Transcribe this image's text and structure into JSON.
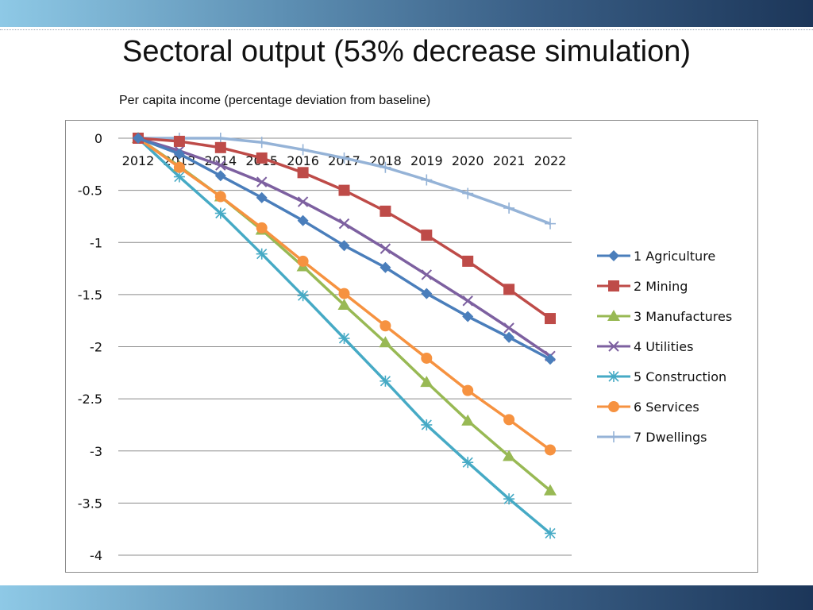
{
  "slide": {
    "title": "Sectoral output (53% decrease simulation)"
  },
  "chart_data": {
    "type": "line",
    "title": "Per capita income  (percentage deviation from baseline)",
    "xlabel": "",
    "ylabel": "",
    "categories": [
      "2012",
      "2013",
      "2014",
      "2015",
      "2016",
      "2017",
      "2018",
      "2019",
      "2020",
      "2021",
      "2022"
    ],
    "ylim": [
      -4,
      0
    ],
    "yticks": [
      0,
      -0.5,
      -1,
      -1.5,
      -2,
      -2.5,
      -3,
      -3.5,
      -4
    ],
    "ytick_labels": [
      "0",
      "-0.5",
      "-1",
      "-1.5",
      "-2",
      "-2.5",
      "-3",
      "-3.5",
      "-4"
    ],
    "grid": true,
    "legend_position": "right",
    "series": [
      {
        "name": "1 Agriculture",
        "color": "#4a7ebb",
        "marker": "diamond",
        "values": [
          0,
          -0.15,
          -0.36,
          -0.57,
          -0.79,
          -1.03,
          -1.24,
          -1.49,
          -1.71,
          -1.91,
          -2.12
        ]
      },
      {
        "name": "2 Mining",
        "color": "#be4b48",
        "marker": "square",
        "values": [
          0,
          -0.03,
          -0.09,
          -0.19,
          -0.33,
          -0.5,
          -0.7,
          -0.93,
          -1.18,
          -1.45,
          -1.73
        ]
      },
      {
        "name": "3 Manufactures",
        "color": "#98b954",
        "marker": "triangle",
        "values": [
          0,
          -0.27,
          -0.56,
          -0.88,
          -1.23,
          -1.6,
          -1.96,
          -2.34,
          -2.71,
          -3.05,
          -3.38
        ]
      },
      {
        "name": "4 Utilities",
        "color": "#7d60a0",
        "marker": "x",
        "values": [
          0,
          -0.12,
          -0.26,
          -0.42,
          -0.61,
          -0.82,
          -1.06,
          -1.31,
          -1.56,
          -1.82,
          -2.09
        ]
      },
      {
        "name": "5 Construction",
        "color": "#46aac5",
        "marker": "star",
        "values": [
          0,
          -0.37,
          -0.72,
          -1.11,
          -1.51,
          -1.92,
          -2.33,
          -2.75,
          -3.11,
          -3.46,
          -3.79
        ]
      },
      {
        "name": "6 Services",
        "color": "#f69240",
        "marker": "circle",
        "values": [
          0,
          -0.28,
          -0.56,
          -0.86,
          -1.18,
          -1.49,
          -1.8,
          -2.11,
          -2.42,
          -2.7,
          -2.99
        ]
      },
      {
        "name": "7 Dwellings",
        "color": "#95b3d7",
        "marker": "plus",
        "values": [
          0,
          0,
          0,
          -0.04,
          -0.11,
          -0.19,
          -0.28,
          -0.4,
          -0.53,
          -0.67,
          -0.82
        ]
      }
    ]
  }
}
